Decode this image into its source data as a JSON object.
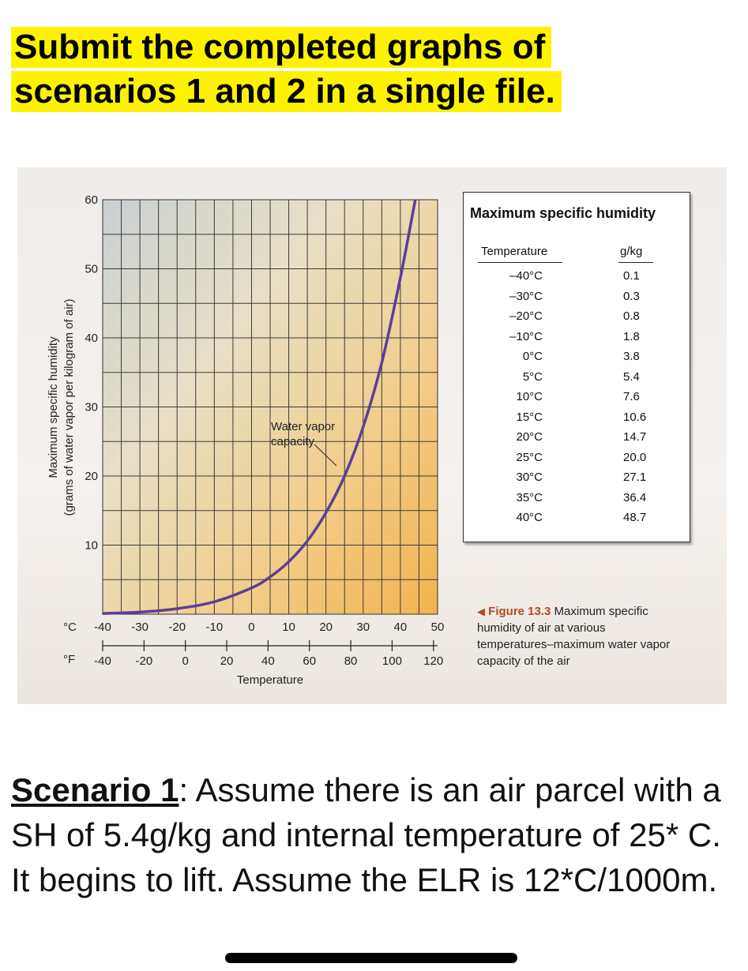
{
  "header": {
    "line1": "Submit the completed graphs of",
    "line2": "scenarios 1 and 2 in a single file."
  },
  "chart_data": {
    "type": "line",
    "series": [
      {
        "name": "Water vapor capacity",
        "x": [
          -40,
          -30,
          -20,
          -10,
          0,
          5,
          10,
          15,
          20,
          25,
          30,
          35,
          40,
          44
        ],
        "y": [
          0.1,
          0.3,
          0.8,
          1.8,
          3.8,
          5.4,
          7.6,
          10.6,
          14.7,
          20.0,
          27.1,
          36.4,
          48.7,
          60
        ]
      }
    ],
    "annotation_line1": "Water vapor",
    "annotation_line2": "capacity",
    "xlabel": "Temperature",
    "ylabel_line1": "Maximum specific humidity",
    "ylabel_line2": "(grams of water vapor per kilogram of air)",
    "xlim": [
      -40,
      50
    ],
    "ylim": [
      0,
      60
    ],
    "x_unit": "°C",
    "x_ticks": [
      "-40",
      "-30",
      "-20",
      "-10",
      "0",
      "10",
      "20",
      "30",
      "40",
      "50"
    ],
    "x2_unit": "°F",
    "x2_ticks": [
      "-40",
      "-20",
      "0",
      "20",
      "40",
      "60",
      "80",
      "100",
      "120"
    ],
    "y_ticks": [
      "10",
      "20",
      "30",
      "40",
      "50",
      "60"
    ],
    "grid": true,
    "line_color": "#5a3f98"
  },
  "table": {
    "title": "Maximum specific humidity",
    "col_temp": "Temperature",
    "col_unit": "g/kg",
    "rows": [
      {
        "t": "–40°C",
        "v": "0.1"
      },
      {
        "t": "–30°C",
        "v": "0.3"
      },
      {
        "t": "–20°C",
        "v": "0.8"
      },
      {
        "t": "–10°C",
        "v": "1.8"
      },
      {
        "t": "0°C",
        "v": "3.8"
      },
      {
        "t": "5°C",
        "v": "5.4"
      },
      {
        "t": "10°C",
        "v": "7.6"
      },
      {
        "t": "15°C",
        "v": "10.6"
      },
      {
        "t": "20°C",
        "v": "14.7"
      },
      {
        "t": "25°C",
        "v": "20.0"
      },
      {
        "t": "30°C",
        "v": "27.1"
      },
      {
        "t": "35°C",
        "v": "36.4"
      },
      {
        "t": "40°C",
        "v": "48.7"
      }
    ]
  },
  "caption": {
    "figure": "Figure 13.3",
    "text": "Maximum specific humidity of air at various temperatures–maximum water vapor capacity of the air"
  },
  "scenario": {
    "label": "Scenario 1",
    "text": ": Assume there is an air parcel with a SH of 5.4g/kg and internal temperature of 25* C. It begins to lift. Assume the ELR is 12*C/1000m."
  }
}
